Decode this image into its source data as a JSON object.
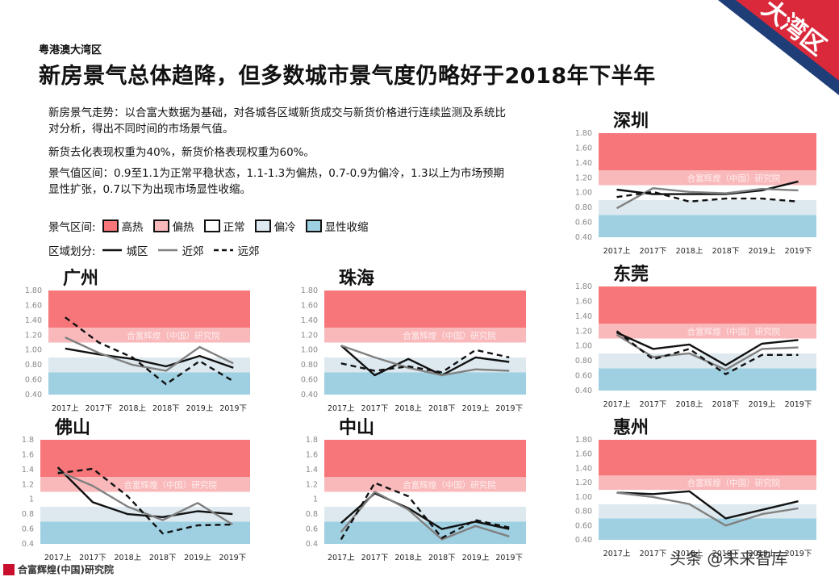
{
  "header": {
    "region": "粤港澳大湾区",
    "title": "新房景气总体趋降，但多数城市景气度仍略好于2018年下半年",
    "corner_badge": "大湾区"
  },
  "description": {
    "p1": "新房景气走势：以合富大数据为基础，对各城各区域新货成交与新货价格进行连续监测及系统比对分析，得出不同时间的市场景气值。",
    "p2": "新货去化表现权重为40%，新货价格表现权重为60%。",
    "p3": "景气值区间：0.9至1.1为正常平稳状态，1.1-1.3为偏热，0.7-0.9为偏冷，1.3以上为市场预期显性扩张，0.7以下为出现市场显性收缩。"
  },
  "legend": {
    "zone_title": "景气区间:",
    "zones": [
      {
        "label": "高热",
        "color": "#f7767a"
      },
      {
        "label": "偏热",
        "color": "#f9b9bb"
      },
      {
        "label": "正常",
        "color": "#ffffff"
      },
      {
        "label": "偏冷",
        "color": "#dde9ef"
      },
      {
        "label": "显性收缩",
        "color": "#9fd0e2"
      }
    ],
    "area_title": "区域划分:",
    "areas": [
      {
        "label": "城区",
        "style": "solid-black"
      },
      {
        "label": "近郊",
        "style": "solid-gray"
      },
      {
        "label": "远郊",
        "style": "dashed-black"
      }
    ]
  },
  "watermark": "合富辉煌（中国）研究院",
  "footer": {
    "logo_text": "合富辉煌(中国)研究院",
    "source": "头条 @未来智库"
  },
  "colors": {
    "hot": "#f7767a",
    "warm": "#f9b9bb",
    "normal": "#ffffff",
    "cool": "#dde9ef",
    "shrink": "#9fd0e2",
    "urban": "#111111",
    "suburb": "#808080",
    "exurb": "#111111",
    "corner_blue": "#1f3e78",
    "corner_red": "#d9293a"
  },
  "chart_data": [
    {
      "title": "深圳",
      "type": "line",
      "categories": [
        "2017上",
        "2017下",
        "2018上",
        "2018下",
        "2019上",
        "2019下"
      ],
      "y_ticks": [
        "0.40",
        "0.60",
        "0.80",
        "1.00",
        "1.20",
        "1.40",
        "1.60",
        "1.80"
      ],
      "ylim": [
        0.4,
        1.8
      ],
      "zones": {
        "shrink": [
          0.4,
          0.7
        ],
        "cool": [
          0.7,
          0.9
        ],
        "normal": [
          0.9,
          1.1
        ],
        "warm": [
          1.1,
          1.3
        ],
        "hot": [
          1.3,
          1.8
        ]
      },
      "series": [
        {
          "name": "城区",
          "values": [
            1.04,
            0.98,
            0.98,
            0.98,
            1.03,
            1.15
          ]
        },
        {
          "name": "近郊",
          "values": [
            0.79,
            1.06,
            1.01,
            0.99,
            1.05,
            1.03
          ]
        },
        {
          "name": "远郊",
          "values": [
            0.94,
            1.01,
            0.88,
            0.92,
            0.92,
            0.88
          ]
        }
      ]
    },
    {
      "title": "广州",
      "type": "line",
      "categories": [
        "2017上",
        "2017下",
        "2018上",
        "2018下",
        "2019上",
        "2019下"
      ],
      "y_ticks": [
        "0.40",
        "0.60",
        "0.80",
        "1.00",
        "1.20",
        "1.40",
        "1.60",
        "1.80"
      ],
      "ylim": [
        0.4,
        1.8
      ],
      "zones": {
        "shrink": [
          0.4,
          0.7
        ],
        "cool": [
          0.7,
          0.9
        ],
        "normal": [
          0.9,
          1.1
        ],
        "warm": [
          1.1,
          1.3
        ],
        "hot": [
          1.3,
          1.8
        ]
      },
      "series": [
        {
          "name": "城区",
          "values": [
            1.02,
            0.94,
            0.88,
            0.78,
            0.92,
            0.76
          ]
        },
        {
          "name": "近郊",
          "values": [
            1.17,
            0.96,
            0.8,
            0.72,
            1.04,
            0.82
          ]
        },
        {
          "name": "远郊",
          "values": [
            1.44,
            1.1,
            0.9,
            0.54,
            0.85,
            0.58
          ]
        }
      ]
    },
    {
      "title": "珠海",
      "type": "line",
      "categories": [
        "2017上",
        "2017下",
        "2018上",
        "2018下",
        "2019上",
        "2019下"
      ],
      "y_ticks": [
        "0.40",
        "0.60",
        "0.80",
        "1.00",
        "1.20",
        "1.40",
        "1.60",
        "1.80"
      ],
      "ylim": [
        0.4,
        1.8
      ],
      "zones": {
        "shrink": [
          0.4,
          0.7
        ],
        "cool": [
          0.7,
          0.9
        ],
        "normal": [
          0.9,
          1.1
        ],
        "warm": [
          1.1,
          1.3
        ],
        "hot": [
          1.3,
          1.8
        ]
      },
      "series": [
        {
          "name": "城区",
          "values": [
            1.06,
            0.66,
            0.88,
            0.66,
            0.9,
            0.84
          ]
        },
        {
          "name": "近郊",
          "values": [
            1.06,
            0.9,
            0.76,
            0.66,
            0.74,
            0.72
          ]
        },
        {
          "name": "远郊",
          "values": [
            0.82,
            0.72,
            0.78,
            0.7,
            1.0,
            0.9
          ]
        }
      ]
    },
    {
      "title": "东莞",
      "type": "line",
      "categories": [
        "2017上",
        "2017下",
        "2018上",
        "2018下",
        "2019上",
        "2019下"
      ],
      "y_ticks": [
        "0.40",
        "0.60",
        "0.80",
        "1.00",
        "1.20",
        "1.40",
        "1.60",
        "1.80"
      ],
      "ylim": [
        0.4,
        1.8
      ],
      "zones": {
        "shrink": [
          0.4,
          0.7
        ],
        "cool": [
          0.7,
          0.9
        ],
        "normal": [
          0.9,
          1.1
        ],
        "warm": [
          1.1,
          1.3
        ],
        "hot": [
          1.3,
          1.8
        ]
      },
      "series": [
        {
          "name": "城区",
          "values": [
            1.18,
            0.96,
            1.02,
            0.74,
            1.03,
            1.08
          ]
        },
        {
          "name": "近郊",
          "values": [
            1.15,
            0.85,
            0.9,
            0.68,
            0.96,
            0.98
          ]
        },
        {
          "name": "远郊",
          "values": [
            1.2,
            0.82,
            0.96,
            0.62,
            0.88,
            0.88
          ]
        }
      ]
    },
    {
      "title": "佛山",
      "type": "line",
      "categories": [
        "2017上",
        "2017下",
        "2018上",
        "2018下",
        "2019上",
        "2019下"
      ],
      "y_ticks": [
        "0.4",
        "0.6",
        "0.8",
        "1",
        "1.2",
        "1.4",
        "1.6",
        "1.8"
      ],
      "ylim": [
        0.4,
        1.8
      ],
      "zones": {
        "shrink": [
          0.4,
          0.7
        ],
        "cool": [
          0.7,
          0.9
        ],
        "normal": [
          0.9,
          1.1
        ],
        "warm": [
          1.1,
          1.3
        ],
        "hot": [
          1.3,
          1.8
        ]
      },
      "series": [
        {
          "name": "城区",
          "values": [
            1.43,
            0.96,
            0.8,
            0.76,
            0.84,
            0.8
          ]
        },
        {
          "name": "近郊",
          "values": [
            1.38,
            1.18,
            0.9,
            0.72,
            0.95,
            0.66
          ]
        },
        {
          "name": "远郊",
          "values": [
            1.35,
            1.41,
            1.04,
            0.54,
            0.65,
            0.66
          ]
        }
      ]
    },
    {
      "title": "中山",
      "type": "line",
      "categories": [
        "2017上",
        "2017下",
        "2018上",
        "2018下",
        "2019上",
        "2019下"
      ],
      "y_ticks": [
        "0.4",
        "0.6",
        "0.8",
        "1",
        "1.2",
        "1.4",
        "1.6",
        "1.8"
      ],
      "ylim": [
        0.4,
        1.8
      ],
      "zones": {
        "shrink": [
          0.4,
          0.7
        ],
        "cool": [
          0.7,
          0.9
        ],
        "normal": [
          0.9,
          1.1
        ],
        "warm": [
          1.1,
          1.3
        ],
        "hot": [
          1.3,
          1.8
        ]
      },
      "series": [
        {
          "name": "城区",
          "values": [
            0.68,
            1.08,
            0.88,
            0.6,
            0.7,
            0.6
          ]
        },
        {
          "name": "近郊",
          "values": [
            0.56,
            1.1,
            0.86,
            0.46,
            0.64,
            0.5
          ]
        },
        {
          "name": "远郊",
          "values": [
            0.46,
            1.22,
            1.04,
            0.48,
            0.72,
            0.62
          ]
        }
      ]
    },
    {
      "title": "惠州",
      "type": "line",
      "categories": [
        "2017上",
        "2017下",
        "2018上",
        "2018下",
        "2019上",
        "2019下"
      ],
      "y_ticks": [
        "0.40",
        "0.60",
        "0.80",
        "1.00",
        "1.20",
        "1.40",
        "1.60",
        "1.80"
      ],
      "ylim": [
        0.4,
        1.8
      ],
      "zones": {
        "shrink": [
          0.4,
          0.7
        ],
        "cool": [
          0.7,
          0.9
        ],
        "normal": [
          0.9,
          1.1
        ],
        "warm": [
          1.1,
          1.3
        ],
        "hot": [
          1.3,
          1.8
        ]
      },
      "series": [
        {
          "name": "城区",
          "values": [
            1.06,
            1.04,
            1.08,
            0.7,
            0.82,
            0.94
          ]
        },
        {
          "name": "近郊",
          "values": [
            1.06,
            1.0,
            0.9,
            0.6,
            0.76,
            0.84
          ]
        }
      ]
    }
  ]
}
